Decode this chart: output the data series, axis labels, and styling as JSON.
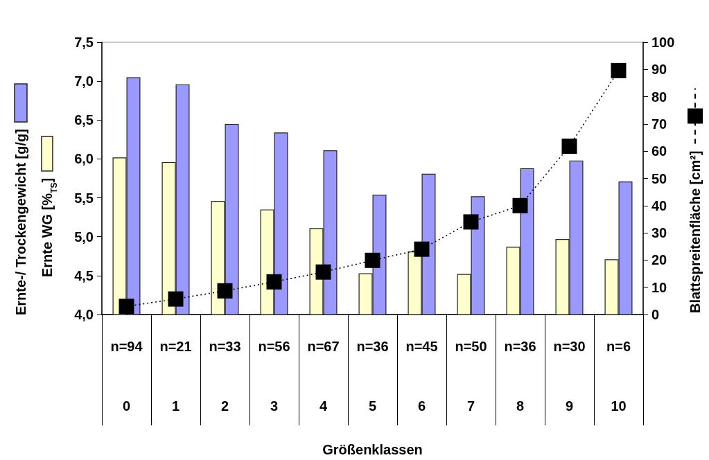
{
  "chart_data": {
    "type": "bar",
    "categories": [
      "0",
      "1",
      "2",
      "3",
      "4",
      "5",
      "6",
      "7",
      "8",
      "9",
      "10"
    ],
    "series": [
      {
        "color": "#ffffcc",
        "values": [
          6.02,
          5.96,
          5.46,
          5.35,
          5.11,
          4.53,
          4.81,
          4.52,
          4.87,
          4.97,
          4.71
        ]
      },
      {
        "color": "#9999ff",
        "values": [
          7.05,
          6.96,
          6.45,
          6.34,
          6.11,
          5.54,
          5.81,
          5.52,
          5.88,
          5.98,
          5.71
        ]
      },
      {
        "type": "line",
        "axis": "y2",
        "color": "#000000",
        "marker": "square",
        "line_style": "dotted",
        "values": [
          3,
          5.7,
          8.7,
          12,
          15.6,
          19.9,
          24,
          34,
          40,
          61.8,
          89.6
        ]
      }
    ],
    "xlabel": "Größenklassen",
    "ylabel": "Ernte-/ Trockengewicht [g/g]\nErnte WG [%$_{TS}$]",
    "y2label": "Blattspreitenfläche [cm²]",
    "annotations": [
      "n=94",
      "n=21",
      "n=33",
      "n=56",
      "n=67",
      "n=36",
      "n=45",
      "n=50",
      "n=36",
      "n=30",
      "n=6"
    ],
    "ylim": [
      4,
      7.5
    ],
    "yticks": [
      {
        "value": 4,
        "label": "4,0"
      },
      {
        "value": 4.5,
        "label": "4,5"
      },
      {
        "value": 5,
        "label": "5,0"
      },
      {
        "value": 5.5,
        "label": "5,5"
      },
      {
        "value": 6,
        "label": "6,0"
      },
      {
        "value": 6.5,
        "label": "6,5"
      },
      {
        "value": 7,
        "label": "7,0"
      },
      {
        "value": 7.5,
        "label": "7,5"
      }
    ],
    "y2lim": [
      0,
      100
    ],
    "y2ticks": [
      0,
      10,
      20,
      30,
      40,
      50,
      60,
      70,
      80,
      90,
      100
    ],
    "grid": false
  }
}
